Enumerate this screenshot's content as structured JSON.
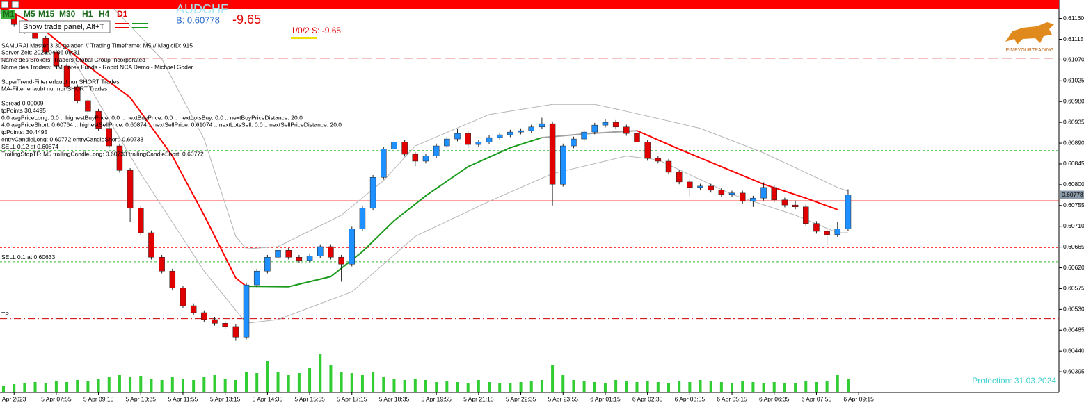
{
  "toolbar": {
    "timeframes": [
      "M1",
      "M5",
      "M15",
      "M30",
      "H1",
      "H4",
      "D1"
    ],
    "tooltip": "Show trade panel, Alt+T"
  },
  "header": {
    "symbol": "AUDCHF",
    "bid_text": "B: 0.60778",
    "profit": "-9.65",
    "positions": "1/0/2 S: -9.65",
    "logo_text": "PIMPYOURTRADING",
    "protection": "Protection: 31.03.2024"
  },
  "info_blocks": [
    [
      "SAMURAI Master 3.30 geladen // Trading Timeframe: M5 // MagicID: 915",
      "Server-Zeit: 2023.04.06 09:31",
      "Name des Brokers: Traders Global Group Incorporated",
      "Name des Traders: NM Forex Funds - Rapid NCA Demo - Michael Goder"
    ],
    [
      "SuperTrend-Filter erlaubt nur SHORT Trades",
      "MA-Filter erlaubt nur nur SHORT Trades"
    ],
    [
      "Spread 0.00009",
      "tpPoints 30.4495",
      "0.0  avgPriceLong: 0.0  ::  highestBuyPrice: 0.0  ::  nextBuyPrice:  0.0  ::  nextLotsBuy: 0.0  ::  nextBuyPriceDistance: 20.0",
      "4.0  avgPriceShort: 0.60764 :: highestSellPrice:  0.60874 :: nextSellPrice: 0.61074 :: nextLotsSell: 0.0  ::  nextSellPriceDistance: 20.0",
      "tpPoints: 30.4495",
      "entryCandleLong: 0.60772 entryCandleShort: 0.60733",
      "SELL 0.12 at 0.60874",
      "TrailingStopTF: M5 trailingCandleLong: 0.60733 trailingCandleShort: 0.60772"
    ]
  ],
  "chart_data": {
    "type": "candlestick",
    "up_color": "#1e90ff",
    "down_color": "#e00000",
    "open": [
      0.6119,
      0.6117,
      0.61147,
      0.61132,
      0.61117,
      0.61087,
      0.61057,
      0.61012,
      0.60982,
      0.60959,
      0.60922,
      0.60884,
      0.60831,
      0.60749,
      0.60696,
      0.60643,
      0.60613,
      0.60576,
      0.60538,
      0.60523,
      0.60508,
      0.605,
      0.60493,
      0.6047,
      0.60583,
      0.60613,
      0.60643,
      0.60658,
      0.60643,
      0.60636,
      0.60646,
      0.60666,
      0.60643,
      0.60628,
      0.60704,
      0.60749,
      0.60816,
      0.60877,
      0.60892,
      0.60866,
      0.60851,
      0.60862,
      0.60884,
      0.60899,
      0.60911,
      0.60887,
      0.60892,
      0.60902,
      0.60908,
      0.60914,
      0.60917,
      0.60925,
      0.60932,
      0.60801,
      0.60884,
      0.60899,
      0.60914,
      0.60929,
      0.60935,
      0.60925,
      0.60911,
      0.60892,
      0.60857,
      0.60851,
      0.60827,
      0.60806,
      0.60794,
      0.60797,
      0.60788,
      0.60779,
      0.60782,
      0.60764,
      0.60771,
      0.60794,
      0.60767,
      0.60756,
      0.60752,
      0.60716,
      0.60699,
      0.60692,
      0.60704
    ],
    "high": [
      0.61195,
      0.61175,
      0.61152,
      0.61137,
      0.61122,
      0.61092,
      0.61062,
      0.61017,
      0.60987,
      0.60964,
      0.60927,
      0.60889,
      0.60836,
      0.60754,
      0.60701,
      0.60648,
      0.60618,
      0.60581,
      0.60543,
      0.60528,
      0.60513,
      0.60505,
      0.60498,
      0.60588,
      0.60618,
      0.60648,
      0.6068,
      0.60663,
      0.60648,
      0.60651,
      0.60671,
      0.60671,
      0.60648,
      0.60709,
      0.60754,
      0.60821,
      0.60882,
      0.6091,
      0.60897,
      0.60871,
      0.60867,
      0.60889,
      0.60904,
      0.6092,
      0.60916,
      0.60897,
      0.60907,
      0.60913,
      0.60919,
      0.60922,
      0.6093,
      0.60945,
      0.60937,
      0.60889,
      0.60904,
      0.60919,
      0.60934,
      0.60942,
      0.6094,
      0.6093,
      0.60916,
      0.60897,
      0.60862,
      0.60856,
      0.60832,
      0.60811,
      0.60802,
      0.60802,
      0.60793,
      0.60787,
      0.60787,
      0.60776,
      0.60805,
      0.60799,
      0.60772,
      0.60766,
      0.60757,
      0.60721,
      0.60704,
      0.6072,
      0.6079
    ],
    "low": [
      0.61165,
      0.61142,
      0.61127,
      0.61112,
      0.61082,
      0.61052,
      0.61007,
      0.60977,
      0.60954,
      0.60917,
      0.60879,
      0.60826,
      0.6072,
      0.60691,
      0.60638,
      0.60608,
      0.60571,
      0.60533,
      0.60518,
      0.60503,
      0.60495,
      0.60488,
      0.60462,
      0.60465,
      0.60578,
      0.60608,
      0.60638,
      0.60638,
      0.60631,
      0.60631,
      0.60641,
      0.60638,
      0.6059,
      0.60623,
      0.60699,
      0.60744,
      0.60811,
      0.60872,
      0.60861,
      0.6084,
      0.60846,
      0.60857,
      0.60879,
      0.60894,
      0.6088,
      0.60882,
      0.60887,
      0.60897,
      0.60903,
      0.60909,
      0.60912,
      0.6092,
      0.60755,
      0.60796,
      0.60879,
      0.60894,
      0.60909,
      0.60924,
      0.6092,
      0.60906,
      0.60887,
      0.60852,
      0.60846,
      0.60822,
      0.60801,
      0.60775,
      0.60789,
      0.60783,
      0.60774,
      0.60774,
      0.60759,
      0.60752,
      0.60766,
      0.60762,
      0.60751,
      0.60747,
      0.60711,
      0.60694,
      0.6067,
      0.60687,
      0.60699
    ],
    "close": [
      0.6117,
      0.61147,
      0.61132,
      0.61117,
      0.61087,
      0.61057,
      0.61012,
      0.60982,
      0.60959,
      0.60922,
      0.60884,
      0.60831,
      0.60749,
      0.60696,
      0.60643,
      0.60613,
      0.60576,
      0.60538,
      0.60523,
      0.60508,
      0.605,
      0.60493,
      0.6047,
      0.60583,
      0.60613,
      0.60643,
      0.60658,
      0.60643,
      0.60636,
      0.60646,
      0.60666,
      0.60643,
      0.60628,
      0.60704,
      0.60749,
      0.60816,
      0.60877,
      0.60892,
      0.60866,
      0.60851,
      0.60862,
      0.60884,
      0.60899,
      0.60911,
      0.60887,
      0.60892,
      0.60902,
      0.60908,
      0.60914,
      0.60917,
      0.60925,
      0.60932,
      0.60801,
      0.60884,
      0.60899,
      0.60914,
      0.60929,
      0.60935,
      0.60925,
      0.60911,
      0.60892,
      0.60857,
      0.60851,
      0.60827,
      0.60806,
      0.60794,
      0.60797,
      0.60788,
      0.60779,
      0.60782,
      0.60764,
      0.60771,
      0.60794,
      0.60767,
      0.60756,
      0.60752,
      0.60716,
      0.60699,
      0.60692,
      0.60704,
      0.60778
    ],
    "volume": [
      10,
      12,
      14,
      15,
      13,
      16,
      15,
      18,
      17,
      20,
      22,
      25,
      22,
      24,
      20,
      18,
      22,
      20,
      18,
      22,
      25,
      20,
      18,
      30,
      28,
      45,
      30,
      25,
      28,
      35,
      55,
      40,
      30,
      28,
      25,
      30,
      22,
      20,
      18,
      20,
      18,
      15,
      16,
      15,
      14,
      18,
      15,
      14,
      13,
      15,
      16,
      18,
      40,
      25,
      18,
      16,
      15,
      14,
      18,
      16,
      15,
      17,
      15,
      14,
      16,
      15,
      18,
      16,
      15,
      14,
      16,
      15,
      14,
      15,
      13,
      14,
      16,
      15,
      17,
      25,
      20
    ],
    "volume_color": "#32cd32",
    "volume_lim": [
      0,
      60
    ],
    "lines": [
      {
        "color": "#ff0000",
        "width": 2,
        "x": [
          0,
          4,
          8,
          12,
          16,
          19,
          22,
          23
        ],
        "values": [
          0.61185,
          0.61132,
          0.61057,
          0.60989,
          0.60862,
          0.60734,
          0.60598,
          0.6058
        ]
      },
      {
        "color": "#1a9a1a",
        "width": 2,
        "x": [
          23,
          27,
          31,
          34,
          37,
          40,
          44,
          48,
          51
        ],
        "values": [
          0.6058,
          0.60579,
          0.60601,
          0.60655,
          0.60722,
          0.60776,
          0.60839,
          0.6088,
          0.60902
        ]
      },
      {
        "color": "#a0a0a0",
        "width": 2,
        "x": [
          51,
          55,
          60
        ],
        "values": [
          0.60902,
          0.6091,
          0.60917
        ]
      },
      {
        "color": "#ff0000",
        "width": 2,
        "x": [
          60,
          64,
          68,
          72,
          76,
          79
        ],
        "values": [
          0.60917,
          0.60877,
          0.60839,
          0.60801,
          0.60771,
          0.60746
        ]
      },
      {
        "color": "#b4b4b4",
        "width": 1,
        "x": [
          10,
          15,
          19,
          22,
          23,
          26,
          32,
          36,
          39,
          46,
          52,
          56,
          59,
          66,
          72,
          79,
          80
        ],
        "values": [
          0.61192,
          0.61072,
          0.60899,
          0.60688,
          0.60661,
          0.60666,
          0.60734,
          0.60809,
          0.60884,
          0.60952,
          0.60974,
          0.60974,
          0.60959,
          0.60922,
          0.60869,
          0.60794,
          0.60786
        ]
      },
      {
        "color": "#b4b4b4",
        "width": 1,
        "x": [
          6,
          13,
          19,
          23,
          26,
          33,
          39,
          46,
          52,
          59,
          62,
          69,
          75,
          79,
          80
        ],
        "values": [
          0.61095,
          0.60824,
          0.60613,
          0.605,
          0.60508,
          0.60568,
          0.60688,
          0.60764,
          0.60824,
          0.60862,
          0.60854,
          0.60779,
          0.60734,
          0.60696,
          0.60696
        ]
      }
    ],
    "levels": [
      {
        "value": 0.61074,
        "color": "#d00000",
        "style": "dash"
      },
      {
        "value": 0.60874,
        "color": "#33bb33",
        "style": "dot"
      },
      {
        "value": 0.60778,
        "color": "#8a9aa8",
        "style": "solid"
      },
      {
        "value": 0.60765,
        "color": "#ff0000",
        "style": "solid"
      },
      {
        "value": 0.60664,
        "color": "#ff0000",
        "style": "dot"
      },
      {
        "value": 0.60633,
        "color": "#33bb33",
        "style": "dot",
        "label": "SELL 0.1 at 0.60633"
      },
      {
        "value": 0.6051,
        "color": "#d00000",
        "style": "dashdot",
        "label": "TP"
      }
    ],
    "current_price": {
      "value": 0.60778,
      "label": "0.60778"
    },
    "xlim": [
      -0.33,
      99.97
    ],
    "ylim": [
      0.6035,
      0.612
    ],
    "xticks": [
      {
        "value": 1,
        "label": "Apr 2023"
      },
      {
        "value": 5,
        "label": "5 Apr 07:55"
      },
      {
        "value": 9,
        "label": "5 Apr 09:15"
      },
      {
        "value": 13,
        "label": "5 Apr 10:35"
      },
      {
        "value": 17,
        "label": "5 Apr 11:55"
      },
      {
        "value": 21,
        "label": "5 Apr 13:15"
      },
      {
        "value": 25,
        "label": "5 Apr 14:35"
      },
      {
        "value": 29,
        "label": "5 Apr 15:55"
      },
      {
        "value": 33,
        "label": "5 Apr 17:15"
      },
      {
        "value": 37,
        "label": "5 Apr 18:35"
      },
      {
        "value": 41,
        "label": "5 Apr 19:55"
      },
      {
        "value": 45,
        "label": "5 Apr 21:15"
      },
      {
        "value": 49,
        "label": "5 Apr 22:35"
      },
      {
        "value": 53,
        "label": "5 Apr 23:55"
      },
      {
        "value": 57,
        "label": "6 Apr 01:15"
      },
      {
        "value": 61,
        "label": "6 Apr 02:35"
      },
      {
        "value": 65,
        "label": "6 Apr 03:55"
      },
      {
        "value": 69,
        "label": "6 Apr 05:15"
      },
      {
        "value": 73,
        "label": "6 Apr 06:35"
      },
      {
        "value": 77,
        "label": "6 Apr 07:55"
      },
      {
        "value": 81,
        "label": "6 Apr 09:15"
      }
    ],
    "yticks": [
      {
        "value": 0.6116,
        "label": "0.61160"
      },
      {
        "value": 0.61115,
        "label": "0.61115"
      },
      {
        "value": 0.6107,
        "label": "0.61070"
      },
      {
        "value": 0.61025,
        "label": "0.61025"
      },
      {
        "value": 0.6098,
        "label": "0.60980"
      },
      {
        "value": 0.60935,
        "label": "0.60935"
      },
      {
        "value": 0.6089,
        "label": "0.60890"
      },
      {
        "value": 0.60845,
        "label": "0.60845"
      },
      {
        "value": 0.608,
        "label": "0.60800"
      },
      {
        "value": 0.60755,
        "label": "0.60755"
      },
      {
        "value": 0.6071,
        "label": "0.60710"
      },
      {
        "value": 0.60665,
        "label": "0.60665"
      },
      {
        "value": 0.6062,
        "label": "0.60620"
      },
      {
        "value": 0.60575,
        "label": "0.60575"
      },
      {
        "value": 0.6053,
        "label": "0.60530"
      },
      {
        "value": 0.60485,
        "label": "0.60485"
      },
      {
        "value": 0.6044,
        "label": "0.60440"
      },
      {
        "value": 0.60395,
        "label": "0.60395"
      }
    ]
  }
}
